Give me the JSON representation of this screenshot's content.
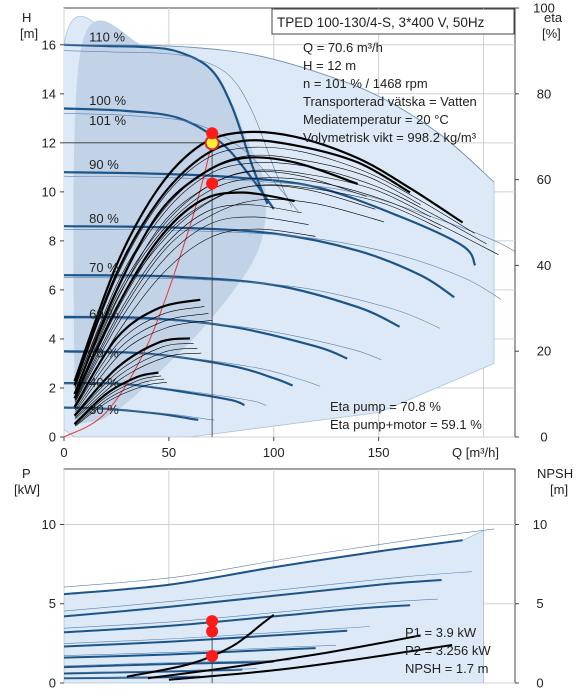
{
  "chart_data": [
    {
      "type": "line",
      "panel": "head-efficiency",
      "title": "TPED 100-130/4-S, 3*400 V, 50Hz",
      "x_axis": {
        "label": "Q [m³/h]",
        "range": [
          0,
          215
        ],
        "ticks": [
          0,
          50,
          100,
          150
        ]
      },
      "y_left": {
        "label": "H",
        "unit": "[m]",
        "range": [
          0,
          17.5
        ],
        "ticks": [
          0,
          2,
          4,
          6,
          8,
          10,
          12,
          14,
          16
        ]
      },
      "y_right": {
        "label": "eta",
        "unit": "[%]",
        "range": [
          0,
          100
        ],
        "ticks": [
          0,
          20,
          40,
          60,
          80,
          100
        ]
      },
      "grid": true,
      "info_lines": [
        "Q = 70.6 m³/h",
        "H = 12 m",
        "n = 101 % / 1468 rpm",
        "Transporterad vätska = Vatten",
        "Mediatemperatur = 20 °C",
        "Volymetrisk vikt = 998.2 kg/m³"
      ],
      "eta_lines": [
        "Eta pump = 70.8 %",
        "Eta pump+motor = 59.1 %"
      ],
      "speed_labels": [
        {
          "text": "110 %",
          "x": 12,
          "y": 16.3
        },
        {
          "text": "100 %",
          "x": 12,
          "y": 13.7
        },
        {
          "text": "101 %",
          "x": 12,
          "y": 12.9
        },
        {
          "text": "90 %",
          "x": 12,
          "y": 11.1
        },
        {
          "text": "80 %",
          "x": 12,
          "y": 8.9
        },
        {
          "text": "70 %",
          "x": 12,
          "y": 6.9
        },
        {
          "text": "60 %",
          "x": 12,
          "y": 5.0
        },
        {
          "text": "50 %",
          "x": 12,
          "y": 3.4
        },
        {
          "text": "40 %",
          "x": 12,
          "y": 2.2
        },
        {
          "text": "30 %",
          "x": 12,
          "y": 1.1
        }
      ],
      "head_curves": [
        {
          "name": "110 %",
          "points": [
            [
              0,
              16
            ],
            [
              20,
              15.95
            ],
            [
              40,
              15.9
            ],
            [
              55,
              15.7
            ],
            [
              70,
              15.0
            ],
            [
              80,
              13.5
            ],
            [
              90,
              11.0
            ],
            [
              97,
              9.5
            ]
          ],
          "style": "thick"
        },
        {
          "name": "100 %",
          "points": [
            [
              0,
              13.4
            ],
            [
              30,
              13.3
            ],
            [
              55,
              13.0
            ],
            [
              75,
              12.0
            ],
            [
              90,
              10.5
            ],
            [
              100,
              9.3
            ]
          ],
          "style": "thick"
        },
        {
          "name": "90 %",
          "points": [
            [
              0,
              10.8
            ],
            [
              40,
              10.75
            ],
            [
              80,
              10.6
            ],
            [
              120,
              10.2
            ],
            [
              160,
              9.0
            ],
            [
              190,
              7.8
            ],
            [
              196,
              7.0
            ]
          ],
          "style": "thick"
        },
        {
          "name": "80 %",
          "points": [
            [
              0,
              8.6
            ],
            [
              50,
              8.55
            ],
            [
              100,
              8.3
            ],
            [
              140,
              7.6
            ],
            [
              170,
              6.6
            ],
            [
              186,
              5.7
            ]
          ],
          "style": "thick"
        },
        {
          "name": "70 %",
          "points": [
            [
              0,
              6.6
            ],
            [
              50,
              6.55
            ],
            [
              100,
              6.2
            ],
            [
              140,
              5.3
            ],
            [
              160,
              4.5
            ]
          ],
          "style": "thick"
        },
        {
          "name": "60 %",
          "points": [
            [
              0,
              4.9
            ],
            [
              40,
              4.85
            ],
            [
              80,
              4.5
            ],
            [
              120,
              3.7
            ],
            [
              135,
              3.2
            ]
          ],
          "style": "thick"
        },
        {
          "name": "50 %",
          "points": [
            [
              0,
              3.5
            ],
            [
              40,
              3.4
            ],
            [
              80,
              2.9
            ],
            [
              100,
              2.4
            ],
            [
              109,
              2.1
            ]
          ],
          "style": "thick"
        },
        {
          "name": "40 %",
          "points": [
            [
              0,
              2.2
            ],
            [
              30,
              2.15
            ],
            [
              60,
              1.8
            ],
            [
              80,
              1.5
            ],
            [
              86,
              1.3
            ]
          ],
          "style": "thick"
        },
        {
          "name": "30 %",
          "points": [
            [
              0,
              1.2
            ],
            [
              20,
              1.15
            ],
            [
              45,
              0.95
            ],
            [
              60,
              0.75
            ],
            [
              64,
              0.7
            ]
          ],
          "style": "thick"
        },
        {
          "name": "boundary",
          "points": [
            [
              0,
              16
            ],
            [
              30,
              15.99
            ],
            [
              60,
              15.9
            ],
            [
              90,
              15.6
            ],
            [
              120,
              14.9
            ],
            [
              150,
              13.9
            ],
            [
              180,
              12.3
            ],
            [
              205,
              10.4
            ]
          ],
          "style": "thin"
        }
      ],
      "eta_curves": [
        {
          "name": "100 %",
          "points": [
            [
              5,
              13
            ],
            [
              25,
              40
            ],
            [
              45,
              58
            ],
            [
              65,
              68
            ],
            [
              85,
              71
            ],
            [
              110,
              70
            ],
            [
              140,
              65
            ],
            [
              165,
              58
            ],
            [
              190,
              50
            ]
          ],
          "style": "thick"
        },
        {
          "name": "90 %",
          "points": [
            [
              5,
              12
            ],
            [
              25,
              38
            ],
            [
              45,
              55
            ],
            [
              65,
              65
            ],
            [
              85,
              69
            ],
            [
              110,
              68
            ],
            [
              140,
              64
            ],
            [
              165,
              57
            ]
          ],
          "style": "thick"
        },
        {
          "name": "80 %",
          "points": [
            [
              5,
              10
            ],
            [
              25,
              34
            ],
            [
              45,
              52
            ],
            [
              65,
              61
            ],
            [
              85,
              65
            ],
            [
              110,
              64
            ],
            [
              140,
              59
            ]
          ],
          "style": "thick"
        },
        {
          "name": "70 %",
          "points": [
            [
              5,
              9
            ],
            [
              25,
              30
            ],
            [
              45,
              46
            ],
            [
              65,
              55
            ],
            [
              85,
              57
            ],
            [
              110,
              55
            ]
          ],
          "style": "thick"
        },
        {
          "name": "50 %",
          "points": [
            [
              5,
              7
            ],
            [
              25,
              23
            ],
            [
              45,
              30
            ],
            [
              65,
              32
            ]
          ],
          "style": "thick"
        },
        {
          "name": "40 %",
          "points": [
            [
              5,
              5
            ],
            [
              25,
              16
            ],
            [
              45,
              22
            ],
            [
              60,
              23
            ]
          ],
          "style": "thick"
        },
        {
          "name": "30 %",
          "points": [
            [
              5,
              3
            ],
            [
              20,
              10
            ],
            [
              35,
              14
            ],
            [
              45,
              15
            ]
          ],
          "style": "thick"
        }
      ],
      "system_curve": [
        [
          0,
          0
        ],
        [
          20,
          1
        ],
        [
          40,
          3.8
        ],
        [
          60,
          8.6
        ],
        [
          70.6,
          12
        ]
      ],
      "operating_points": [
        {
          "label": "duty-head",
          "x": 70.6,
          "y": 12,
          "axis": "H",
          "highlight": true
        },
        {
          "label": "eta-pump",
          "x": 70.6,
          "y": 70.8,
          "axis": "eta"
        },
        {
          "label": "eta-pump-motor",
          "x": 70.6,
          "y": 59.1,
          "axis": "eta"
        }
      ]
    },
    {
      "type": "line",
      "panel": "power-npsh",
      "x_axis": {
        "range": [
          0,
          215
        ]
      },
      "y_left": {
        "label": "P",
        "unit": "[kW]",
        "range": [
          0,
          13.5
        ],
        "ticks": [
          0,
          5,
          10
        ]
      },
      "y_right": {
        "label": "NPSH",
        "unit": "[m]",
        "range": [
          0,
          13.5
        ],
        "ticks": [
          0,
          5,
          10
        ]
      },
      "grid": true,
      "info_lines": [
        "P1 = 3.9 kW",
        "P2 = 3.256 kW",
        "NPSH = 1.7 m"
      ],
      "power_curves": [
        {
          "name": "110 %",
          "points": [
            [
              0,
              5.6
            ],
            [
              50,
              6.2
            ],
            [
              100,
              7.3
            ],
            [
              150,
              8.3
            ],
            [
              190,
              9.0
            ]
          ]
        },
        {
          "name": "100 %",
          "points": [
            [
              0,
              4.2
            ],
            [
              50,
              4.8
            ],
            [
              100,
              5.5
            ],
            [
              150,
              6.2
            ],
            [
              180,
              6.5
            ]
          ]
        },
        {
          "name": "90 %",
          "points": [
            [
              0,
              3.2
            ],
            [
              50,
              3.6
            ],
            [
              100,
              4.2
            ],
            [
              140,
              4.7
            ],
            [
              165,
              4.9
            ]
          ]
        },
        {
          "name": "80 %",
          "points": [
            [
              0,
              2.3
            ],
            [
              50,
              2.6
            ],
            [
              100,
              3.0
            ],
            [
              135,
              3.3
            ]
          ]
        },
        {
          "name": "70 %",
          "points": [
            [
              0,
              1.6
            ],
            [
              50,
              1.8
            ],
            [
              100,
              2.1
            ],
            [
              120,
              2.2
            ]
          ]
        },
        {
          "name": "60 %",
          "points": [
            [
              0,
              1.0
            ],
            [
              50,
              1.2
            ],
            [
              90,
              1.3
            ],
            [
              100,
              1.35
            ]
          ]
        },
        {
          "name": "50 %",
          "points": [
            [
              0,
              0.6
            ],
            [
              40,
              0.7
            ],
            [
              75,
              0.8
            ],
            [
              85,
              0.85
            ]
          ]
        },
        {
          "name": "40 %",
          "points": [
            [
              0,
              0.3
            ],
            [
              40,
              0.35
            ],
            [
              65,
              0.4
            ]
          ]
        }
      ],
      "npsh_curves": [
        {
          "name": "100 %",
          "points": [
            [
              30,
              0.4
            ],
            [
              60,
              1.2
            ],
            [
              80,
              2.3
            ],
            [
              95,
              3.8
            ],
            [
              100,
              4.3
            ]
          ]
        },
        {
          "name": "90 %",
          "points": [
            [
              40,
              0.3
            ],
            [
              80,
              1.0
            ],
            [
              120,
              1.8
            ],
            [
              150,
              2.5
            ],
            [
              170,
              3.0
            ]
          ]
        },
        {
          "name": "80 %",
          "points": [
            [
              50,
              0.2
            ],
            [
              100,
              0.8
            ],
            [
              140,
              1.5
            ],
            [
              170,
              2.1
            ],
            [
              185,
              2.4
            ]
          ]
        }
      ],
      "operating_points": [
        {
          "label": "P1",
          "x": 70.6,
          "y": 3.9
        },
        {
          "label": "P2",
          "x": 70.6,
          "y": 3.256
        },
        {
          "label": "NPSH",
          "x": 70.6,
          "y": 1.7
        }
      ]
    }
  ]
}
